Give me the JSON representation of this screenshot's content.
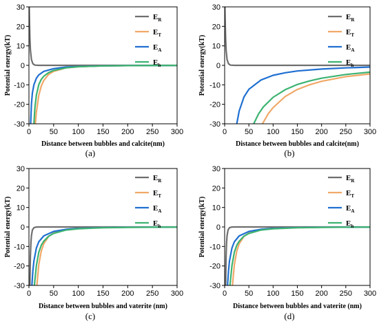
{
  "figure": {
    "panels": [
      {
        "label": "(a)",
        "xlabel": "Distance between bubbles and calcite(nm)",
        "ylabel": "Potential energy(kT)",
        "xlim": [
          0,
          300
        ],
        "ylim": [
          -30,
          30
        ],
        "xticks": [
          "0",
          "50",
          "100",
          "150",
          "200",
          "250",
          "300"
        ],
        "yticks": [
          "-30",
          "-20",
          "-10",
          "0",
          "10",
          "20",
          "30"
        ]
      },
      {
        "label": "(b)",
        "xlabel": "Distance between bubbles and calcite(nm)",
        "ylabel": "Potential energy(kT)",
        "xlim": [
          0,
          300
        ],
        "ylim": [
          -30,
          30
        ],
        "xticks": [
          "0",
          "50",
          "100",
          "150",
          "200",
          "250",
          "300"
        ],
        "yticks": [
          "-30",
          "-20",
          "-10",
          "0",
          "10",
          "20",
          "30"
        ]
      },
      {
        "label": "(c)",
        "xlabel": "Distance between bubbles and vaterite (nm)",
        "ylabel": "Potential energy(kT)",
        "xlim": [
          0,
          300
        ],
        "ylim": [
          -30,
          30
        ],
        "xticks": [
          "0",
          "50",
          "100",
          "150",
          "200",
          "250",
          "300"
        ],
        "yticks": [
          "-30",
          "-20",
          "-10",
          "0",
          "10",
          "20",
          "30"
        ]
      },
      {
        "label": "(d)",
        "xlabel": "Distance between bubbles and vaterite (nm)",
        "ylabel": "Potential energy(kT)",
        "xlim": [
          0,
          300
        ],
        "ylim": [
          -30,
          30
        ],
        "xticks": [
          "0",
          "50",
          "100",
          "150",
          "200",
          "250",
          "300"
        ],
        "yticks": [
          "-30",
          "-20",
          "-10",
          "0",
          "10",
          "20",
          "30"
        ]
      }
    ],
    "legend": [
      {
        "main": "E",
        "sub": "R",
        "color": "#6e6e6e"
      },
      {
        "main": "E",
        "sub": "T",
        "color": "#f0a868"
      },
      {
        "main": "E",
        "sub": "A",
        "color": "#1f6fd1"
      },
      {
        "main": "E",
        "sub": "h",
        "color": "#3cb371"
      }
    ]
  },
  "chart_data": [
    {
      "type": "line",
      "title": "",
      "xlabel": "Distance between bubbles and calcite(nm)",
      "ylabel": "Potential energy(kT)",
      "xlim": [
        0,
        300
      ],
      "ylim": [
        -30,
        30
      ],
      "legend_position": "top-right",
      "series": [
        {
          "name": "ER",
          "color": "#6e6e6e",
          "x": [
            0.5,
            1,
            2,
            3,
            5,
            8,
            12,
            20,
            50,
            100,
            300
          ],
          "y": [
            30,
            24,
            14,
            8,
            3,
            0.8,
            0.1,
            0,
            0,
            0,
            0
          ]
        },
        {
          "name": "ET",
          "color": "#f0a868",
          "x": [
            13,
            15,
            20,
            25,
            30,
            40,
            50,
            75,
            100,
            150,
            200,
            300
          ],
          "y": [
            -30,
            -24,
            -15.4,
            -10.6,
            -7.8,
            -4.6,
            -3.1,
            -1.3,
            -0.7,
            -0.3,
            -0.15,
            -0.05
          ]
        },
        {
          "name": "EA",
          "color": "#1f6fd1",
          "x": [
            3.5,
            5,
            7,
            10,
            15,
            20,
            30,
            50,
            75,
            100,
            150,
            200,
            300
          ],
          "y": [
            -30,
            -20,
            -14.2,
            -10,
            -6.6,
            -4.9,
            -3.1,
            -1.7,
            -0.9,
            -0.6,
            -0.3,
            -0.15,
            -0.05
          ]
        },
        {
          "name": "Eh",
          "color": "#3cb371",
          "x": [
            10,
            12,
            15,
            20,
            25,
            30,
            40,
            50,
            75,
            100,
            150,
            200,
            300
          ],
          "y": [
            -30,
            -22,
            -15.3,
            -9.9,
            -7.2,
            -5.6,
            -3.7,
            -2.6,
            -1.3,
            -0.7,
            -0.3,
            -0.15,
            -0.05
          ]
        }
      ]
    },
    {
      "type": "line",
      "title": "",
      "xlabel": "Distance between bubbles and calcite(nm)",
      "ylabel": "Potential energy(kT)",
      "xlim": [
        0,
        300
      ],
      "ylim": [
        -30,
        30
      ],
      "legend_position": "top-right",
      "series": [
        {
          "name": "ER",
          "color": "#6e6e6e",
          "x": [
            0.5,
            1,
            2,
            3,
            5,
            8,
            12,
            20,
            50,
            100,
            300
          ],
          "y": [
            30,
            24,
            14,
            8,
            3,
            0.8,
            0.1,
            0,
            0,
            0,
            0
          ]
        },
        {
          "name": "ET",
          "color": "#f0a868",
          "x": [
            78,
            90,
            100,
            125,
            150,
            175,
            200,
            250,
            300
          ],
          "y": [
            -30,
            -24.8,
            -21.7,
            -16,
            -12.4,
            -10,
            -8.2,
            -5.8,
            -4.4
          ]
        },
        {
          "name": "EA",
          "color": "#1f6fd1",
          "x": [
            25,
            30,
            40,
            50,
            75,
            100,
            125,
            150,
            200,
            250,
            300
          ],
          "y": [
            -30,
            -23.4,
            -16.2,
            -12.3,
            -7.5,
            -5.1,
            -3.8,
            -2.9,
            -1.9,
            -1.3,
            -0.9
          ]
        },
        {
          "name": "Eh",
          "color": "#3cb371",
          "x": [
            60,
            70,
            80,
            100,
            125,
            150,
            175,
            200,
            250,
            300
          ],
          "y": [
            -30,
            -24.9,
            -21.3,
            -16.4,
            -12.5,
            -9.8,
            -8,
            -6.6,
            -4.7,
            -3.5
          ]
        }
      ]
    },
    {
      "type": "line",
      "title": "",
      "xlabel": "Distance between bubbles and vaterite (nm)",
      "ylabel": "Potential energy(kT)",
      "xlim": [
        0,
        300
      ],
      "ylim": [
        -30,
        30
      ],
      "legend_position": "top-right",
      "series": [
        {
          "name": "ER",
          "color": "#6e6e6e",
          "x": [
            2,
            3,
            4,
            5,
            7,
            10,
            15,
            20,
            50,
            300
          ],
          "y": [
            -30,
            -15,
            -8,
            -4.5,
            -1.6,
            -0.4,
            -0.05,
            0,
            0,
            0
          ]
        },
        {
          "name": "ET",
          "color": "#f0a868",
          "x": [
            16,
            20,
            25,
            30,
            40,
            50,
            75,
            100,
            150,
            200,
            300
          ],
          "y": [
            -30,
            -19.3,
            -12.4,
            -8.6,
            -4.8,
            -3.1,
            -1.3,
            -0.7,
            -0.3,
            -0.15,
            -0.05
          ]
        },
        {
          "name": "EA",
          "color": "#1f6fd1",
          "x": [
            6,
            8,
            10,
            15,
            20,
            30,
            50,
            75,
            100,
            150,
            200,
            300
          ],
          "y": [
            -30,
            -22.5,
            -17.5,
            -10.8,
            -7.6,
            -4.6,
            -2.3,
            -1.2,
            -0.7,
            -0.3,
            -0.15,
            -0.05
          ]
        },
        {
          "name": "Eh",
          "color": "#3cb371",
          "x": [
            11,
            15,
            20,
            25,
            30,
            40,
            50,
            75,
            100,
            150,
            200,
            300
          ],
          "y": [
            -30,
            -19.8,
            -12.9,
            -9.4,
            -7.3,
            -4.7,
            -3.3,
            -1.6,
            -0.9,
            -0.4,
            -0.2,
            -0.05
          ]
        }
      ]
    },
    {
      "type": "line",
      "title": "",
      "xlabel": "Distance between bubbles and vaterite (nm)",
      "ylabel": "Potential energy(kT)",
      "xlim": [
        0,
        300
      ],
      "ylim": [
        -30,
        30
      ],
      "legend_position": "top-right",
      "series": [
        {
          "name": "ER",
          "color": "#6e6e6e",
          "x": [
            2,
            3,
            4,
            5,
            7,
            10,
            15,
            20,
            50,
            300
          ],
          "y": [
            -30,
            -15,
            -8,
            -4.5,
            -1.6,
            -0.4,
            -0.05,
            0,
            0,
            0
          ]
        },
        {
          "name": "ET",
          "color": "#f0a868",
          "x": [
            16,
            20,
            25,
            30,
            40,
            50,
            75,
            100,
            150,
            200,
            300
          ],
          "y": [
            -30,
            -19.3,
            -12.4,
            -8.6,
            -4.8,
            -3.1,
            -1.3,
            -0.7,
            -0.3,
            -0.15,
            -0.05
          ]
        },
        {
          "name": "EA",
          "color": "#1f6fd1",
          "x": [
            6,
            8,
            10,
            15,
            20,
            30,
            50,
            75,
            100,
            150,
            200,
            300
          ],
          "y": [
            -30,
            -22.5,
            -17.5,
            -10.8,
            -7.6,
            -4.6,
            -2.3,
            -1.2,
            -0.7,
            -0.3,
            -0.15,
            -0.05
          ]
        },
        {
          "name": "Eh",
          "color": "#3cb371",
          "x": [
            11,
            15,
            20,
            25,
            30,
            40,
            50,
            75,
            100,
            150,
            200,
            300
          ],
          "y": [
            -30,
            -19.8,
            -12.9,
            -9.4,
            -7.3,
            -4.7,
            -3.3,
            -1.6,
            -0.9,
            -0.4,
            -0.2,
            -0.05
          ]
        }
      ]
    }
  ]
}
